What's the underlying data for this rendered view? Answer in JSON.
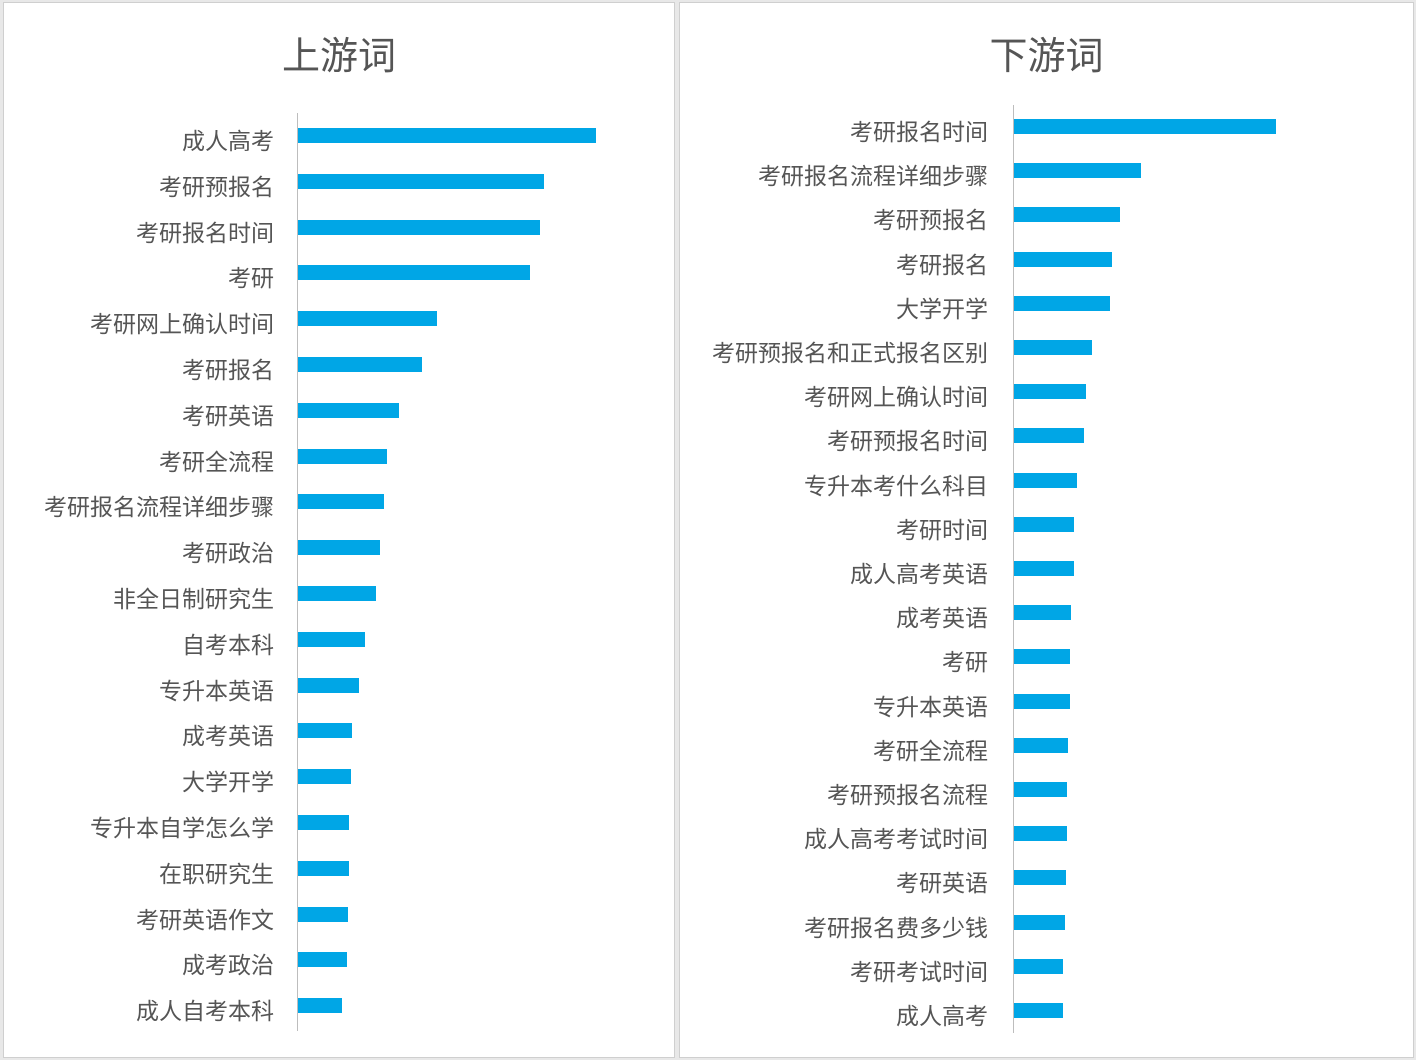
{
  "chart_data": [
    {
      "type": "bar",
      "orientation": "horizontal",
      "title": "上游词",
      "xlabel": "",
      "ylabel": "",
      "grid": false,
      "legend": false,
      "bar_color": "#00a6e6",
      "categories": [
        "成人高考",
        "考研预报名",
        "考研报名时间",
        "考研",
        "考研网上确认时间",
        "考研报名",
        "考研英语",
        "考研全流程",
        "考研报名流程详细步骤",
        "考研政治",
        "非全日制研究生",
        "自考本科",
        "专升本英语",
        "成考英语",
        "大学开学",
        "专升本自学怎么学",
        "在职研究生",
        "考研英语作文",
        "成考政治",
        "成人自考本科"
      ],
      "values": [
        298,
        246,
        242,
        232,
        139,
        124,
        101,
        89,
        86,
        82,
        78,
        67,
        61,
        54,
        53,
        51,
        51,
        50,
        49,
        44
      ]
    },
    {
      "type": "bar",
      "orientation": "horizontal",
      "title": "下游词",
      "xlabel": "",
      "ylabel": "",
      "grid": false,
      "legend": false,
      "bar_color": "#00a6e6",
      "categories": [
        "考研报名时间",
        "考研报名流程详细步骤",
        "考研预报名",
        "考研报名",
        "大学开学",
        "考研预报名和正式报名区别",
        "考研网上确认时间",
        "考研预报名时间",
        "专升本考什么科目",
        "考研时间",
        "成人高考英语",
        "成考英语",
        "考研",
        "专升本英语",
        "考研全流程",
        "考研预报名流程",
        "成人高考考试时间",
        "考研英语",
        "考研报名费多少钱",
        "考研考试时间",
        "成人高考"
      ],
      "values": [
        262,
        127,
        106,
        98,
        96,
        78,
        72,
        70,
        63,
        60,
        60,
        57,
        56,
        56,
        54,
        53,
        53,
        52,
        51,
        49,
        49
      ]
    }
  ]
}
